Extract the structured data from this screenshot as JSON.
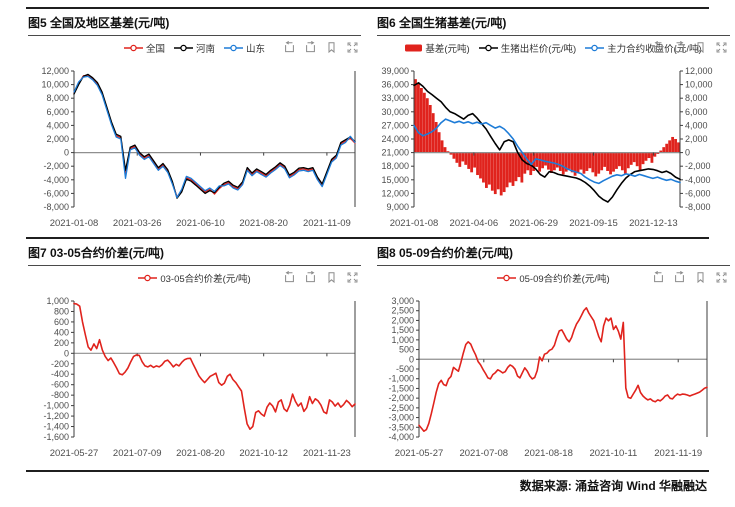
{
  "footer": {
    "source": "数据来源: 涌益咨询 Wind 华融融达"
  },
  "toolbar_icons": [
    "region-prev",
    "region-next",
    "bookmark",
    "fullscreen"
  ],
  "colors": {
    "red": "#e0231d",
    "black": "#000000",
    "blue": "#1e7cd7",
    "axis_line": "#3d3d3d",
    "zero_line": "#8f8f8f",
    "tick_text": "#4d4d4d",
    "rule": "#1f1f1f"
  },
  "chart_data": [
    {
      "type": "line",
      "title": "图5 全国及地区基差(元/吨)",
      "ylim": [
        -8000,
        12000
      ],
      "ystep": 2000,
      "grid": false,
      "legend_position": "top",
      "xticklabels": [
        "2021-01-08",
        "2021-03-26",
        "2021-06-10",
        "2021-08-20",
        "2021-11-09"
      ],
      "series": [
        {
          "name": "全国",
          "type": "line",
          "color": "#e0231d",
          "width": 1.3,
          "values": [
            8800,
            10200,
            11300,
            11400,
            10900,
            10100,
            8700,
            6500,
            4300,
            2500,
            2200,
            -3000,
            600,
            900,
            -200,
            -800,
            -400,
            -1400,
            -2400,
            -1800,
            -2700,
            -4400,
            -6500,
            -5600,
            -3700,
            -4000,
            -4600,
            -5200,
            -5800,
            -5400,
            -6100,
            -5300,
            -4700,
            -4400,
            -5000,
            -5300,
            -4500,
            -2400,
            -3200,
            -2600,
            -3000,
            -3400,
            -2800,
            -2300,
            -1700,
            -2200,
            -3500,
            -3100,
            -2500,
            -2400,
            -2600,
            -2400,
            -3800,
            -4800,
            -3000,
            -1200,
            -600,
            1300,
            1700,
            2100,
            1400
          ]
        },
        {
          "name": "河南",
          "type": "line",
          "color": "#000000",
          "width": 1.3,
          "values": [
            8600,
            10000,
            11200,
            11500,
            11000,
            10300,
            8900,
            6700,
            4500,
            2700,
            2400,
            -2600,
            800,
            1100,
            0,
            -600,
            -200,
            -1200,
            -2200,
            -1600,
            -2500,
            -4200,
            -6700,
            -5800,
            -3900,
            -4200,
            -4800,
            -5400,
            -6000,
            -5600,
            -5900,
            -5100,
            -4500,
            -4200,
            -4800,
            -5100,
            -4300,
            -2200,
            -3000,
            -2400,
            -2800,
            -3200,
            -2600,
            -2100,
            -1500,
            -2000,
            -3300,
            -2900,
            -2300,
            -2200,
            -2400,
            -2200,
            -3600,
            -4600,
            -2800,
            -1000,
            -400,
            1500,
            1900,
            2300,
            1600
          ]
        },
        {
          "name": "山东",
          "type": "line",
          "color": "#1e7cd7",
          "width": 1.3,
          "values": [
            8900,
            10400,
            11100,
            11200,
            10700,
            9900,
            8500,
            6300,
            4100,
            2300,
            2000,
            -3800,
            400,
            700,
            -400,
            -1000,
            -600,
            -1600,
            -2600,
            -2000,
            -2900,
            -4600,
            -6600,
            -5400,
            -3500,
            -3800,
            -4400,
            -5000,
            -5600,
            -5200,
            -5700,
            -4900,
            -4900,
            -4600,
            -5200,
            -5500,
            -4700,
            -2600,
            -3400,
            -2800,
            -3200,
            -3600,
            -3000,
            -2500,
            -1900,
            -2400,
            -3700,
            -3300,
            -2700,
            -2600,
            -2800,
            -2600,
            -4000,
            -5000,
            -3200,
            -1400,
            -800,
            1100,
            1500,
            2400,
            1500
          ]
        }
      ]
    },
    {
      "type": "mixed",
      "title": "图6 全国生猪基差(元/吨)",
      "ylim": [
        9000,
        39000
      ],
      "ystep": 3000,
      "y2lim": [
        -8000,
        12000
      ],
      "y2step": 2000,
      "grid": false,
      "legend_position": "top",
      "xticklabels": [
        "2021-01-08",
        "2021-04-06",
        "2021-06-29",
        "2021-09-15",
        "2021-12-13"
      ],
      "series": [
        {
          "name": "基差(元吨)",
          "type": "bar",
          "axis": "y2",
          "color": "#e0231d",
          "values": [
            10800,
            10200,
            9500,
            8800,
            8000,
            7000,
            5800,
            4500,
            3000,
            1800,
            800,
            200,
            -300,
            -900,
            -1500,
            -2100,
            -1300,
            -1800,
            -2400,
            -2900,
            -2200,
            -3300,
            -3800,
            -4400,
            -5200,
            -4700,
            -5600,
            -6100,
            -5400,
            -6300,
            -5800,
            -5100,
            -4400,
            -4900,
            -4200,
            -3600,
            -4400,
            -3100,
            -2600,
            -3300,
            -2700,
            -2100,
            -2800,
            -2300,
            -1900,
            -2500,
            -3000,
            -2600,
            -2200,
            -2700,
            -3200,
            -2800,
            -2400,
            -2900,
            -3400,
            -3000,
            -2500,
            -3100,
            -2700,
            -2300,
            -2900,
            -3500,
            -3100,
            -2600,
            -2100,
            -2700,
            -3200,
            -2800,
            -2400,
            -2000,
            -2600,
            -3100,
            -2300,
            -1800,
            -1400,
            -2000,
            -2600,
            -1700,
            -1200,
            -800,
            -1500,
            -600,
            -200,
            300,
            800,
            1300,
            1800,
            2300,
            2000,
            1500
          ]
        },
        {
          "name": "生猪出栏价(元/吨)",
          "type": "line",
          "axis": "y",
          "color": "#000000",
          "width": 1.6,
          "values": [
            35800,
            36400,
            35600,
            34500,
            33800,
            33000,
            32200,
            31000,
            30000,
            29600,
            29000,
            28400,
            29200,
            29600,
            28600,
            27400,
            26200,
            24600,
            23000,
            21600,
            23400,
            23800,
            23400,
            21000,
            19400,
            18600,
            18200,
            17400,
            16200,
            15600,
            16800,
            16600,
            16200,
            16000,
            15800,
            15600,
            15400,
            15000,
            14400,
            13600,
            12600,
            11400,
            10600,
            10100,
            11200,
            12800,
            14200,
            15400,
            16200,
            16800,
            17000,
            17200,
            17400,
            17300,
            17000,
            16600,
            16900,
            16400,
            15600,
            15100
          ]
        },
        {
          "name": "主力合约收盘价(元/吨)",
          "type": "line",
          "axis": "y",
          "color": "#1e7cd7",
          "width": 1.6,
          "values": [
            27000,
            25400,
            24700,
            25100,
            25600,
            26400,
            27600,
            28400,
            28000,
            27600,
            27900,
            27500,
            27800,
            27400,
            27700,
            27300,
            27600,
            27000,
            26400,
            26800,
            26200,
            25200,
            24000,
            22400,
            21000,
            19600,
            18400,
            19600,
            19400,
            19100,
            18900,
            18700,
            18400,
            18000,
            17400,
            17000,
            16700,
            16400,
            15600,
            15000,
            14500,
            14200,
            14800,
            15300,
            15800,
            16100,
            15900,
            16300,
            16100,
            15800,
            16200,
            15900,
            15600,
            15300,
            15600,
            15200,
            14900,
            15100,
            14700,
            14400
          ]
        }
      ]
    },
    {
      "type": "line",
      "title": "图7 03-05合约价差(元/吨)",
      "ylim": [
        -1600,
        1000
      ],
      "ystep": 200,
      "grid": false,
      "legend_position": "top",
      "xticklabels": [
        "2021-05-27",
        "2021-07-09",
        "2021-08-20",
        "2021-10-12",
        "2021-11-23"
      ],
      "series": [
        {
          "name": "03-05合约价差(元/吨)",
          "type": "line",
          "color": "#e0231d",
          "width": 1.6,
          "values": [
            950,
            940,
            900,
            600,
            350,
            120,
            60,
            180,
            90,
            260,
            60,
            -60,
            -140,
            -90,
            -180,
            -280,
            -390,
            -410,
            -360,
            -280,
            -160,
            -60,
            -30,
            -40,
            -160,
            -240,
            -260,
            -230,
            -270,
            -240,
            -260,
            -220,
            -150,
            -130,
            -190,
            -260,
            -210,
            -240,
            -170,
            -120,
            -100,
            -95,
            -210,
            -320,
            -430,
            -500,
            -560,
            -500,
            -440,
            -410,
            -380,
            -560,
            -610,
            -570,
            -440,
            -400,
            -500,
            -560,
            -640,
            -720,
            -1050,
            -1350,
            -1450,
            -1400,
            -1130,
            -1100,
            -1160,
            -1200,
            -1030,
            -950,
            -1010,
            -1120,
            -930,
            -890,
            -1060,
            -1110,
            -990,
            -780,
            -920,
            -1010,
            -950,
            -1110,
            -1040,
            -830,
            -960,
            -870,
            -910,
            -990,
            -1120,
            -1150,
            -890,
            -930,
            -1010,
            -950,
            -1030,
            -980,
            -900,
            -950,
            -1020,
            -970
          ]
        }
      ]
    },
    {
      "type": "line",
      "title": "图8 05-09合约价差(元/吨)",
      "ylim": [
        -4000,
        3000
      ],
      "ystep": 500,
      "grid": false,
      "legend_position": "top",
      "xticklabels": [
        "2021-05-27",
        "2021-07-08",
        "2021-08-18",
        "2021-10-11",
        "2021-11-19"
      ],
      "series": [
        {
          "name": "05-09合约价差(元/吨)",
          "type": "line",
          "color": "#e0231d",
          "width": 1.6,
          "values": [
            -3400,
            -3550,
            -3700,
            -3620,
            -3300,
            -2800,
            -2250,
            -1700,
            -1250,
            -1080,
            -1300,
            -1360,
            -1020,
            -880,
            -420,
            -520,
            -620,
            -180,
            320,
            760,
            900,
            780,
            480,
            230,
            -120,
            -280,
            -520,
            -730,
            -960,
            -1010,
            -790,
            -690,
            -540,
            -610,
            -700,
            -640,
            -430,
            -290,
            -360,
            -510,
            -860,
            -960,
            -690,
            -440,
            -610,
            -860,
            -1010,
            -940,
            -580,
            120,
            -80,
            260,
            320,
            460,
            520,
            720,
            1120,
            1460,
            1510,
            1290,
            1040,
            900,
            1120,
            1510,
            1810,
            2010,
            2260,
            2510,
            2650,
            2380,
            2180,
            1980,
            1580,
            1180,
            900,
            1720,
            2120,
            1980,
            2120,
            1540,
            1720,
            1440,
            1040,
            1900,
            -1480,
            -1960,
            -2010,
            -1790,
            -1590,
            -1340,
            -1710,
            -1890,
            -2010,
            -2090,
            -2040,
            -2140,
            -2190,
            -2090,
            -2140,
            -2040,
            -1890,
            -1840,
            -2010,
            -2040,
            -1890,
            -1790,
            -1840,
            -1790,
            -1800,
            -1840,
            -1890,
            -1840,
            -1790,
            -1740,
            -1690,
            -1590,
            -1490,
            -1440
          ]
        }
      ]
    }
  ]
}
